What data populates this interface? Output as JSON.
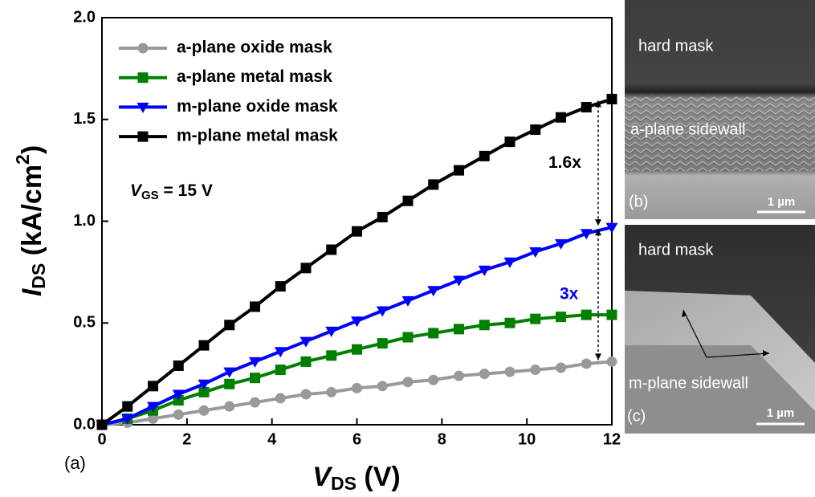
{
  "chart_data": {
    "type": "line",
    "x": [
      0,
      0.6,
      1.2,
      1.8,
      2.4,
      3,
      3.6,
      4.2,
      4.8,
      5.4,
      6,
      6.6,
      7.2,
      7.8,
      8.4,
      9,
      9.6,
      10.2,
      10.8,
      11.4,
      12
    ],
    "series": [
      {
        "name": "a-plane oxide mask",
        "color": "#999999",
        "marker": "circle",
        "values": [
          0,
          0.01,
          0.03,
          0.05,
          0.07,
          0.09,
          0.11,
          0.13,
          0.15,
          0.16,
          0.18,
          0.19,
          0.21,
          0.22,
          0.24,
          0.25,
          0.26,
          0.27,
          0.28,
          0.3,
          0.31
        ]
      },
      {
        "name": "a-plane metal mask",
        "color": "#008000",
        "marker": "square",
        "values": [
          0,
          0.03,
          0.07,
          0.12,
          0.16,
          0.2,
          0.23,
          0.27,
          0.31,
          0.34,
          0.37,
          0.4,
          0.43,
          0.45,
          0.47,
          0.49,
          0.5,
          0.52,
          0.53,
          0.54,
          0.54
        ]
      },
      {
        "name": "m-plane oxide mask",
        "color": "#0000ff",
        "marker": "triangle-down",
        "values": [
          0,
          0.03,
          0.09,
          0.15,
          0.2,
          0.26,
          0.31,
          0.36,
          0.41,
          0.46,
          0.51,
          0.56,
          0.61,
          0.66,
          0.71,
          0.76,
          0.8,
          0.85,
          0.89,
          0.94,
          0.97
        ]
      },
      {
        "name": "m-plane metal mask",
        "color": "#000000",
        "marker": "square",
        "values": [
          0,
          0.09,
          0.19,
          0.29,
          0.39,
          0.49,
          0.58,
          0.68,
          0.77,
          0.86,
          0.95,
          1.02,
          1.1,
          1.18,
          1.25,
          1.32,
          1.39,
          1.45,
          1.51,
          1.56,
          1.6
        ]
      }
    ],
    "xlim": [
      0,
      12
    ],
    "xticks": [
      0,
      2,
      4,
      6,
      8,
      10,
      12
    ],
    "ylim": [
      0,
      2
    ],
    "yticks": [
      {
        "value": 0,
        "label": "0.0"
      },
      0.5,
      {
        "value": 1,
        "label": "1.0"
      },
      1.5,
      {
        "value": 2,
        "label": "2.0"
      }
    ],
    "xlabel": {
      "main": "V",
      "sub": "DS",
      "rest": " (V)"
    },
    "ylabel": {
      "main": "I",
      "sub": "DS",
      "rest": " (kA/cm",
      "sup": "2",
      "end": ")"
    },
    "condition": {
      "main": "V",
      "sub": "GS",
      "rest": " = 15 V"
    },
    "annotations": [
      {
        "text": "1.6x",
        "color": "#000000"
      },
      {
        "text": "3x",
        "color": "#0000ff"
      }
    ],
    "panel_label": "(a)",
    "legend": "upper left"
  },
  "images": [
    {
      "label": "(b)",
      "top_text": "hard mask",
      "sidewall_text": "a-plane sidewall",
      "scale": "1 µm"
    },
    {
      "label": "(c)",
      "top_text": "hard mask",
      "sidewall_text": "m-plane sidewall",
      "scale": "1 µm"
    }
  ]
}
